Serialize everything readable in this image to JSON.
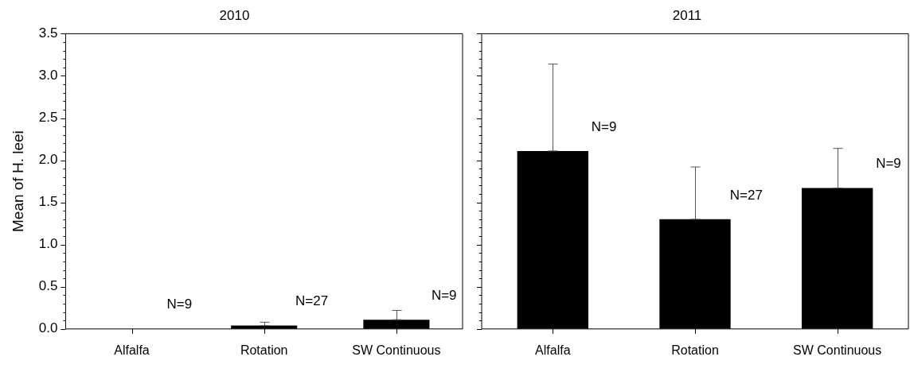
{
  "chart_data": [
    {
      "type": "bar",
      "title": "2010",
      "ylabel": "Mean of H. leei",
      "categories": [
        "Alfalfa",
        "Rotation",
        "SW Continuous"
      ],
      "values": [
        0,
        0.04,
        0.11
      ],
      "color": "#000000",
      "errors": [
        null,
        [
          0.04,
          0.08
        ],
        [
          0.11,
          0.22
        ]
      ],
      "ylim": [
        0,
        3.5
      ],
      "yticks": [
        {
          "value": 0,
          "label": "0.0"
        },
        {
          "value": 0.1,
          "label": null
        },
        {
          "value": 0.2,
          "label": null
        },
        {
          "value": 0.3,
          "label": null
        },
        {
          "value": 0.4,
          "label": null
        },
        {
          "value": 0.5,
          "label": "0.5"
        },
        {
          "value": 0.6,
          "label": null
        },
        {
          "value": 0.7,
          "label": null
        },
        {
          "value": 0.8,
          "label": null
        },
        {
          "value": 0.9,
          "label": null
        },
        {
          "value": 1,
          "label": "1.0"
        },
        {
          "value": 1.1,
          "label": null
        },
        {
          "value": 1.2,
          "label": null
        },
        {
          "value": 1.3,
          "label": null
        },
        {
          "value": 1.4,
          "label": null
        },
        {
          "value": 1.5,
          "label": "1.5"
        },
        {
          "value": 1.6,
          "label": null
        },
        {
          "value": 1.7,
          "label": null
        },
        {
          "value": 1.8,
          "label": null
        },
        {
          "value": 1.9,
          "label": null
        },
        {
          "value": 2,
          "label": "2.0"
        },
        {
          "value": 2.1,
          "label": null
        },
        {
          "value": 2.2,
          "label": null
        },
        {
          "value": 2.3,
          "label": null
        },
        {
          "value": 2.4,
          "label": null
        },
        {
          "value": 2.5,
          "label": "2.5"
        },
        {
          "value": 2.6,
          "label": null
        },
        {
          "value": 2.7,
          "label": null
        },
        {
          "value": 2.8,
          "label": null
        },
        {
          "value": 2.9,
          "label": null
        },
        {
          "value": 3,
          "label": "3.0"
        },
        {
          "value": 3.1,
          "label": null
        },
        {
          "value": 3.2,
          "label": null
        },
        {
          "value": 3.3,
          "label": null
        },
        {
          "value": 3.4,
          "label": null
        },
        {
          "value": 3.5,
          "label": "3.5"
        }
      ],
      "annotations": [
        "N=9",
        "N=27",
        "N=9"
      ],
      "grid": false,
      "legend": false
    },
    {
      "type": "bar",
      "title": "2011",
      "categories": [
        "Alfalfa",
        "Rotation",
        "SW Continuous"
      ],
      "values": [
        2.11,
        1.3,
        1.67
      ],
      "color": "#000000",
      "errors": [
        [
          2.11,
          3.14
        ],
        [
          1.3,
          1.92
        ],
        [
          1.67,
          2.14
        ]
      ],
      "ylim": [
        0,
        3.5
      ],
      "yticks": [
        0,
        {
          "value": 0.1,
          "label": null
        },
        {
          "value": 0.2,
          "label": null
        },
        {
          "value": 0.3,
          "label": null
        },
        {
          "value": 0.4,
          "label": null
        },
        0.5,
        {
          "value": 0.6,
          "label": null
        },
        {
          "value": 0.7,
          "label": null
        },
        {
          "value": 0.8,
          "label": null
        },
        {
          "value": 0.9,
          "label": null
        },
        1,
        {
          "value": 1.1,
          "label": null
        },
        {
          "value": 1.2,
          "label": null
        },
        {
          "value": 1.3,
          "label": null
        },
        {
          "value": 1.4,
          "label": null
        },
        1.5,
        {
          "value": 1.6,
          "label": null
        },
        {
          "value": 1.7,
          "label": null
        },
        {
          "value": 1.8,
          "label": null
        },
        {
          "value": 1.9,
          "label": null
        },
        2,
        {
          "value": 2.1,
          "label": null
        },
        {
          "value": 2.2,
          "label": null
        },
        {
          "value": 2.3,
          "label": null
        },
        {
          "value": 2.4,
          "label": null
        },
        2.5,
        {
          "value": 2.6,
          "label": null
        },
        {
          "value": 2.7,
          "label": null
        },
        {
          "value": 2.8,
          "label": null
        },
        {
          "value": 2.9,
          "label": null
        },
        3,
        {
          "value": 3.1,
          "label": null
        },
        {
          "value": 3.2,
          "label": null
        },
        {
          "value": 3.3,
          "label": null
        },
        {
          "value": 3.4,
          "label": null
        },
        3.5
      ],
      "annotations": [
        "N=9",
        "N=27",
        "N=9"
      ],
      "tick_labels": "x",
      "grid": false,
      "legend": false
    }
  ]
}
